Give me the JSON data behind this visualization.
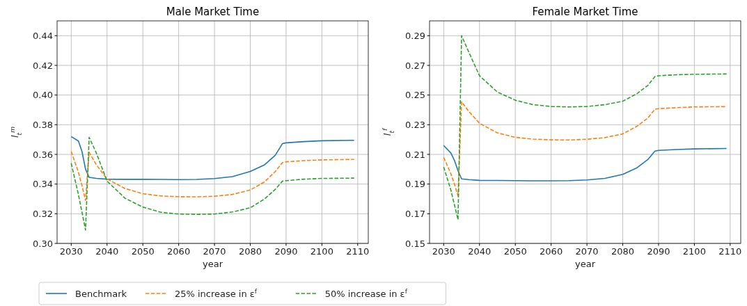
{
  "chart_data": [
    {
      "type": "line",
      "title": "Male Market Time",
      "xlabel": "year",
      "ylabel": "l$_{t}$$^{m}$",
      "xlim": [
        2026.05,
        2112.95
      ],
      "xticks": [
        2030,
        2040,
        2050,
        2060,
        2070,
        2080,
        2090,
        2100,
        2110
      ],
      "ylim": [
        0.3,
        0.45
      ],
      "yticks": [
        {
          "value": 0.3,
          "label": "0.30"
        },
        0.32,
        0.34,
        0.36,
        0.38,
        {
          "value": 0.4,
          "label": "0.40"
        },
        0.42,
        0.44
      ],
      "grid": true,
      "legend": "bottom left",
      "x": [
        2030,
        2032,
        2033,
        2034,
        2035,
        2037,
        2040,
        2045,
        2050,
        2055,
        2060,
        2065,
        2070,
        2075,
        2080,
        2084,
        2087,
        2089,
        2090,
        2095,
        2100,
        2109
      ],
      "series": [
        {
          "name": "Benchmark",
          "color": "#1f77b4",
          "line_style": "solid",
          "values": [
            0.372,
            0.369,
            0.362,
            0.35,
            0.3445,
            0.3438,
            0.3433,
            0.3432,
            0.3432,
            0.3431,
            0.343,
            0.3431,
            0.3437,
            0.345,
            0.3485,
            0.353,
            0.3595,
            0.3673,
            0.3678,
            0.3686,
            0.3692,
            0.3695
          ]
        },
        {
          "name": "25% increase in ε$^{f}$",
          "color": "#ff7f0e",
          "line_style": "dashed",
          "values": [
            0.362,
            0.348,
            0.339,
            0.329,
            0.3615,
            0.353,
            0.3435,
            0.337,
            0.3335,
            0.332,
            0.3315,
            0.3314,
            0.3318,
            0.333,
            0.336,
            0.3415,
            0.3485,
            0.3545,
            0.355,
            0.3558,
            0.3563,
            0.3566
          ]
        },
        {
          "name": "50% increase in ε$^{f}$",
          "color": "#2ca02c",
          "line_style": "dashed",
          "values": [
            0.354,
            0.333,
            0.321,
            0.309,
            0.3715,
            0.361,
            0.342,
            0.3305,
            0.3245,
            0.321,
            0.3198,
            0.3196,
            0.3198,
            0.3212,
            0.324,
            0.33,
            0.3365,
            0.342,
            0.3423,
            0.3433,
            0.3438,
            0.344
          ]
        }
      ]
    },
    {
      "type": "line",
      "title": "Female Market Time",
      "xlabel": "year",
      "ylabel": "l$_{t}$$^{f}$",
      "xlim": [
        2026.05,
        2112.95
      ],
      "xticks": [
        2030,
        2040,
        2050,
        2060,
        2070,
        2080,
        2090,
        2100,
        2110
      ],
      "ylim": [
        0.15,
        0.3
      ],
      "yticks": [
        0.15,
        0.17,
        0.19,
        0.21,
        0.23,
        0.25,
        0.27,
        0.29
      ],
      "grid": true,
      "x": [
        2030,
        2032,
        2033,
        2034,
        2035,
        2037,
        2040,
        2045,
        2050,
        2055,
        2060,
        2065,
        2070,
        2075,
        2080,
        2084,
        2087,
        2089,
        2090,
        2095,
        2100,
        2109
      ],
      "series": [
        {
          "color": "#1f77b4",
          "line_style": "solid",
          "values": [
            0.216,
            0.211,
            0.206,
            0.199,
            0.1935,
            0.193,
            0.1925,
            0.1924,
            0.1923,
            0.1922,
            0.1922,
            0.1923,
            0.1928,
            0.1938,
            0.1965,
            0.201,
            0.2065,
            0.2122,
            0.2127,
            0.2133,
            0.2137,
            0.214
          ]
        },
        {
          "color": "#ff7f0e",
          "line_style": "dashed",
          "values": [
            0.208,
            0.197,
            0.19,
            0.182,
            0.2455,
            0.239,
            0.231,
            0.2245,
            0.2215,
            0.2203,
            0.2198,
            0.2197,
            0.2202,
            0.2213,
            0.2238,
            0.229,
            0.2345,
            0.2405,
            0.2408,
            0.2415,
            0.242,
            0.2422
          ]
        },
        {
          "color": "#2ca02c",
          "line_style": "dashed",
          "values": [
            0.2015,
            0.186,
            0.176,
            0.166,
            0.29,
            0.279,
            0.263,
            0.252,
            0.2465,
            0.2435,
            0.2423,
            0.242,
            0.2423,
            0.2435,
            0.2458,
            0.251,
            0.2565,
            0.2625,
            0.263,
            0.2637,
            0.264,
            0.2642
          ]
        }
      ]
    }
  ]
}
